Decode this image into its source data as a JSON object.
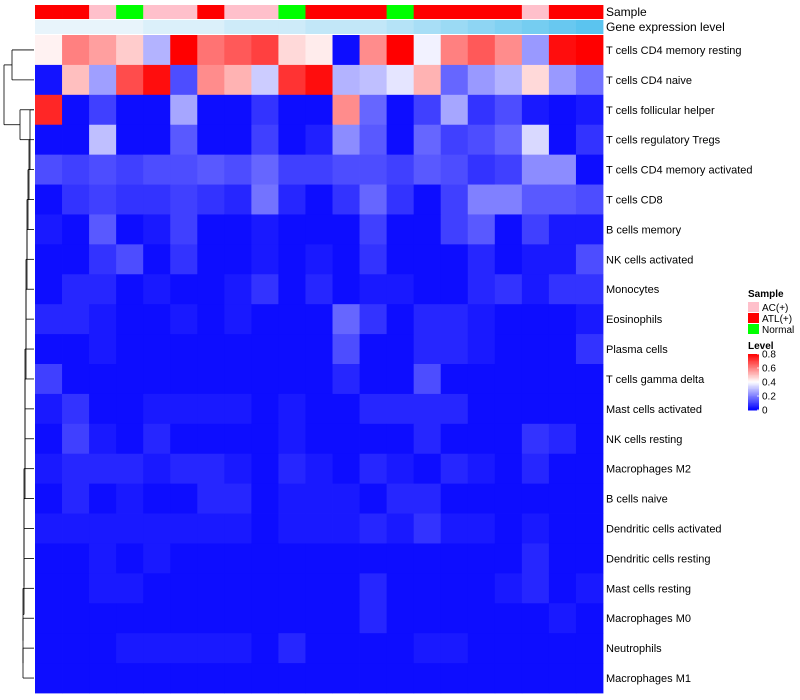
{
  "chart_data": {
    "type": "heatmap",
    "annotation_tracks": [
      {
        "name": "Sample",
        "values": [
          "ATL(+)",
          "ATL(+)",
          "AC(+)",
          "Normal",
          "AC(+)",
          "AC(+)",
          "ATL(+)",
          "AC(+)",
          "AC(+)",
          "Normal",
          "ATL(+)",
          "ATL(+)",
          "ATL(+)",
          "Normal",
          "ATL(+)",
          "ATL(+)",
          "ATL(+)",
          "ATL(+)",
          "AC(+)",
          "ATL(+)",
          "ATL(+)"
        ]
      },
      {
        "name": "Gene expression level",
        "values": [
          0.03,
          0.03,
          0.03,
          0.03,
          0.04,
          0.04,
          0.04,
          0.05,
          0.05,
          0.05,
          0.06,
          0.06,
          0.06,
          0.07,
          0.08,
          0.09,
          0.1,
          0.11,
          0.12,
          0.13,
          0.14
        ]
      }
    ],
    "rows": [
      "T cells CD4 memory resting",
      "T cells CD4 naive",
      "T cells follicular helper",
      "T cells regulatory  Tregs",
      "T cells CD4 memory activated",
      "T cells CD8",
      "B cells memory",
      "NK cells activated",
      "Monocytes",
      "Eosinophils",
      "Plasma cells",
      "T cells gamma delta",
      "Mast cells activated",
      "NK cells resting",
      "Macrophages M2",
      "B cells naive",
      "Dendritic cells activated",
      "Dendritic cells resting",
      "Mast cells resting",
      "Macrophages M0",
      "Neutrophils",
      "Macrophages M1"
    ],
    "columns": 21,
    "values": [
      [
        0.42,
        0.6,
        0.55,
        0.48,
        0.28,
        0.8,
        0.62,
        0.66,
        0.7,
        0.46,
        0.43,
        0.02,
        0.58,
        0.8,
        0.38,
        0.6,
        0.66,
        0.58,
        0.24,
        0.78,
        0.8
      ],
      [
        0.03,
        0.5,
        0.25,
        0.68,
        0.78,
        0.12,
        0.58,
        0.52,
        0.32,
        0.72,
        0.78,
        0.28,
        0.3,
        0.36,
        0.52,
        0.16,
        0.24,
        0.28,
        0.46,
        0.24,
        0.18
      ],
      [
        0.74,
        0.02,
        0.1,
        0.02,
        0.02,
        0.26,
        0.02,
        0.02,
        0.08,
        0.02,
        0.02,
        0.58,
        0.16,
        0.02,
        0.1,
        0.26,
        0.08,
        0.12,
        0.04,
        0.02,
        0.04
      ],
      [
        0.02,
        0.02,
        0.3,
        0.02,
        0.02,
        0.14,
        0.02,
        0.02,
        0.1,
        0.02,
        0.05,
        0.22,
        0.14,
        0.02,
        0.16,
        0.1,
        0.12,
        0.16,
        0.34,
        0.02,
        0.08
      ],
      [
        0.12,
        0.1,
        0.12,
        0.1,
        0.12,
        0.12,
        0.14,
        0.12,
        0.16,
        0.1,
        0.1,
        0.12,
        0.12,
        0.1,
        0.14,
        0.12,
        0.08,
        0.1,
        0.22,
        0.22,
        0.02
      ],
      [
        0.02,
        0.08,
        0.1,
        0.08,
        0.08,
        0.1,
        0.08,
        0.06,
        0.18,
        0.06,
        0.02,
        0.08,
        0.16,
        0.08,
        0.02,
        0.1,
        0.2,
        0.2,
        0.14,
        0.14,
        0.12
      ],
      [
        0.04,
        0.02,
        0.14,
        0.02,
        0.04,
        0.1,
        0.02,
        0.02,
        0.04,
        0.02,
        0.02,
        0.02,
        0.1,
        0.02,
        0.02,
        0.1,
        0.14,
        0.02,
        0.1,
        0.04,
        0.04
      ],
      [
        0.02,
        0.02,
        0.08,
        0.12,
        0.02,
        0.08,
        0.02,
        0.02,
        0.04,
        0.02,
        0.04,
        0.02,
        0.08,
        0.02,
        0.02,
        0.02,
        0.06,
        0.02,
        0.04,
        0.04,
        0.12
      ],
      [
        0.02,
        0.06,
        0.06,
        0.02,
        0.04,
        0.02,
        0.02,
        0.04,
        0.08,
        0.02,
        0.06,
        0.02,
        0.04,
        0.04,
        0.02,
        0.02,
        0.06,
        0.08,
        0.04,
        0.08,
        0.08
      ],
      [
        0.06,
        0.06,
        0.04,
        0.02,
        0.02,
        0.04,
        0.02,
        0.04,
        0.02,
        0.02,
        0.02,
        0.16,
        0.08,
        0.02,
        0.06,
        0.06,
        0.04,
        0.02,
        0.02,
        0.02,
        0.04
      ],
      [
        0.02,
        0.02,
        0.04,
        0.02,
        0.02,
        0.02,
        0.02,
        0.02,
        0.02,
        0.02,
        0.02,
        0.12,
        0.02,
        0.02,
        0.06,
        0.06,
        0.04,
        0.02,
        0.02,
        0.02,
        0.08
      ],
      [
        0.1,
        0.02,
        0.02,
        0.02,
        0.02,
        0.02,
        0.02,
        0.02,
        0.02,
        0.02,
        0.02,
        0.06,
        0.02,
        0.02,
        0.12,
        0.02,
        0.02,
        0.02,
        0.02,
        0.02,
        0.02
      ],
      [
        0.04,
        0.08,
        0.02,
        0.02,
        0.04,
        0.04,
        0.04,
        0.04,
        0.02,
        0.04,
        0.02,
        0.02,
        0.06,
        0.06,
        0.06,
        0.06,
        0.02,
        0.02,
        0.02,
        0.02,
        0.02
      ],
      [
        0.02,
        0.1,
        0.04,
        0.02,
        0.06,
        0.02,
        0.02,
        0.02,
        0.02,
        0.04,
        0.02,
        0.02,
        0.02,
        0.02,
        0.06,
        0.02,
        0.02,
        0.02,
        0.08,
        0.06,
        0.02
      ],
      [
        0.04,
        0.06,
        0.06,
        0.06,
        0.04,
        0.06,
        0.06,
        0.04,
        0.02,
        0.06,
        0.04,
        0.02,
        0.06,
        0.04,
        0.02,
        0.06,
        0.04,
        0.02,
        0.06,
        0.02,
        0.02
      ],
      [
        0.02,
        0.06,
        0.02,
        0.04,
        0.02,
        0.02,
        0.06,
        0.06,
        0.02,
        0.04,
        0.04,
        0.04,
        0.02,
        0.06,
        0.06,
        0.02,
        0.02,
        0.02,
        0.02,
        0.02,
        0.02
      ],
      [
        0.04,
        0.04,
        0.04,
        0.04,
        0.04,
        0.04,
        0.04,
        0.04,
        0.02,
        0.04,
        0.04,
        0.04,
        0.06,
        0.04,
        0.08,
        0.04,
        0.04,
        0.02,
        0.04,
        0.02,
        0.02
      ],
      [
        0.02,
        0.02,
        0.04,
        0.02,
        0.04,
        0.02,
        0.02,
        0.02,
        0.02,
        0.02,
        0.02,
        0.02,
        0.02,
        0.02,
        0.02,
        0.02,
        0.02,
        0.02,
        0.06,
        0.02,
        0.02
      ],
      [
        0.02,
        0.02,
        0.04,
        0.04,
        0.02,
        0.02,
        0.02,
        0.02,
        0.02,
        0.02,
        0.02,
        0.02,
        0.06,
        0.02,
        0.02,
        0.02,
        0.02,
        0.04,
        0.06,
        0.02,
        0.04
      ],
      [
        0.02,
        0.02,
        0.02,
        0.02,
        0.02,
        0.02,
        0.02,
        0.02,
        0.02,
        0.02,
        0.02,
        0.02,
        0.06,
        0.02,
        0.02,
        0.02,
        0.02,
        0.02,
        0.02,
        0.04,
        0.02
      ],
      [
        0.02,
        0.02,
        0.02,
        0.04,
        0.04,
        0.04,
        0.04,
        0.04,
        0.02,
        0.06,
        0.02,
        0.02,
        0.02,
        0.02,
        0.04,
        0.04,
        0.02,
        0.02,
        0.02,
        0.02,
        0.02
      ],
      [
        0.02,
        0.02,
        0.02,
        0.02,
        0.02,
        0.02,
        0.02,
        0.02,
        0.02,
        0.02,
        0.02,
        0.02,
        0.02,
        0.02,
        0.02,
        0.02,
        0.02,
        0.02,
        0.02,
        0.02,
        0.02
      ]
    ],
    "color_scale": {
      "min": 0,
      "max": 0.8,
      "low": "#0000ff",
      "mid": "#ffffff",
      "high": "#ff0000",
      "mid_value": 0.4
    },
    "legend": {
      "placement": "right",
      "sample_title": "Sample",
      "sample_items": [
        {
          "label": "AC(+)",
          "color": "#ffc0cb"
        },
        {
          "label": "ATL(+)",
          "color": "#ff0000"
        },
        {
          "label": "Normal",
          "color": "#00ff00"
        }
      ],
      "level_title": "Level",
      "level_ticks": [
        "0.8",
        "0.6",
        "0.4",
        "0.2",
        "0"
      ],
      "level_tick_values": [
        0.8,
        0.6,
        0.4,
        0.2,
        0
      ]
    },
    "expression_track_colors": {
      "low": "#e8f4fb",
      "high": "#5bc4ef"
    },
    "row_dendrogram": "present"
  }
}
